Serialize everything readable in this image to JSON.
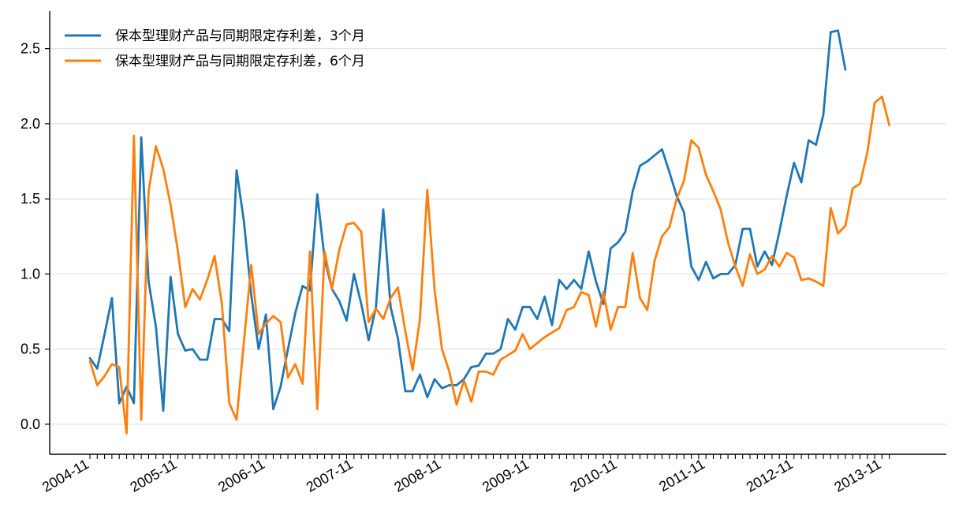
{
  "chart_data": {
    "type": "line",
    "title": "",
    "xlabel": "",
    "ylabel": "",
    "ylim": [
      -0.2,
      2.75
    ],
    "y_ticks": [
      0.0,
      0.5,
      1.0,
      1.5,
      2.0,
      2.5
    ],
    "y_tick_labels": [
      "0.0",
      "0.5",
      "1.0",
      "1.5",
      "2.0",
      "2.5"
    ],
    "grid": "horizontal",
    "legend_position": "top-left",
    "x_start": "2004-11",
    "x_tick_labels": [
      "2004-11",
      "2005-11",
      "2006-11",
      "2007-11",
      "2008-11",
      "2009-11",
      "2010-11",
      "2011-11",
      "2012-11",
      "2013-11"
    ],
    "series": [
      {
        "name": "保本型理财产品与同期限定存利差，3个月",
        "color": "#1f77b4",
        "values": [
          0.44,
          0.37,
          0.6,
          0.84,
          0.14,
          0.25,
          0.14,
          1.91,
          0.95,
          0.65,
          0.09,
          0.98,
          0.6,
          0.49,
          0.5,
          0.43,
          0.43,
          0.7,
          0.7,
          0.62,
          1.69,
          1.35,
          0.86,
          0.5,
          0.73,
          0.1,
          0.25,
          0.5,
          0.74,
          0.92,
          0.89,
          1.53,
          1.1,
          0.9,
          0.82,
          0.69,
          1.0,
          0.8,
          0.56,
          0.78,
          1.43,
          0.78,
          0.57,
          0.22,
          0.22,
          0.33,
          0.18,
          0.3,
          0.24,
          0.26,
          0.26,
          0.3,
          0.38,
          0.39,
          0.47,
          0.47,
          0.5,
          0.7,
          0.63,
          0.78,
          0.78,
          0.7,
          0.85,
          0.66,
          0.96,
          0.9,
          0.96,
          0.9,
          1.15,
          0.95,
          0.8,
          1.17,
          1.21,
          1.28,
          1.55,
          1.72,
          1.75,
          1.79,
          1.83,
          1.68,
          1.52,
          1.41,
          1.05,
          0.96,
          1.08,
          0.97,
          1.0,
          1.0,
          1.06,
          1.3,
          1.3,
          1.05,
          1.15,
          1.06,
          1.28,
          1.52,
          1.74,
          1.61,
          1.89,
          1.86,
          2.06,
          2.61,
          2.62,
          2.36
        ]
      },
      {
        "name": "保本型理财产品与同期限定存利差，6个月",
        "color": "#ff7f0e",
        "values": [
          0.42,
          0.26,
          0.32,
          0.4,
          0.38,
          -0.06,
          1.92,
          0.03,
          1.55,
          1.85,
          1.7,
          1.46,
          1.15,
          0.78,
          0.9,
          0.83,
          0.96,
          1.12,
          0.8,
          0.14,
          0.03,
          0.55,
          1.06,
          0.6,
          0.67,
          0.72,
          0.68,
          0.31,
          0.4,
          0.27,
          1.15,
          0.1,
          1.15,
          0.9,
          1.16,
          1.33,
          1.34,
          1.28,
          0.68,
          0.77,
          0.7,
          0.84,
          0.91,
          0.62,
          0.36,
          0.7,
          1.56,
          0.89,
          0.5,
          0.35,
          0.13,
          0.29,
          0.15,
          0.35,
          0.35,
          0.33,
          0.43,
          0.46,
          0.49,
          0.6,
          0.5,
          0.54,
          0.58,
          0.61,
          0.64,
          0.76,
          0.78,
          0.88,
          0.86,
          0.65,
          0.88,
          0.63,
          0.78,
          0.78,
          1.14,
          0.84,
          0.76,
          1.09,
          1.25,
          1.31,
          1.5,
          1.62,
          1.89,
          1.84,
          1.66,
          1.55,
          1.43,
          1.21,
          1.05,
          0.92,
          1.13,
          1.0,
          1.03,
          1.12,
          1.05,
          1.14,
          1.11,
          0.96,
          0.97,
          0.95,
          0.92,
          1.44,
          1.27,
          1.32,
          1.57,
          1.6,
          1.81,
          2.14,
          2.18,
          1.99
        ]
      }
    ]
  }
}
